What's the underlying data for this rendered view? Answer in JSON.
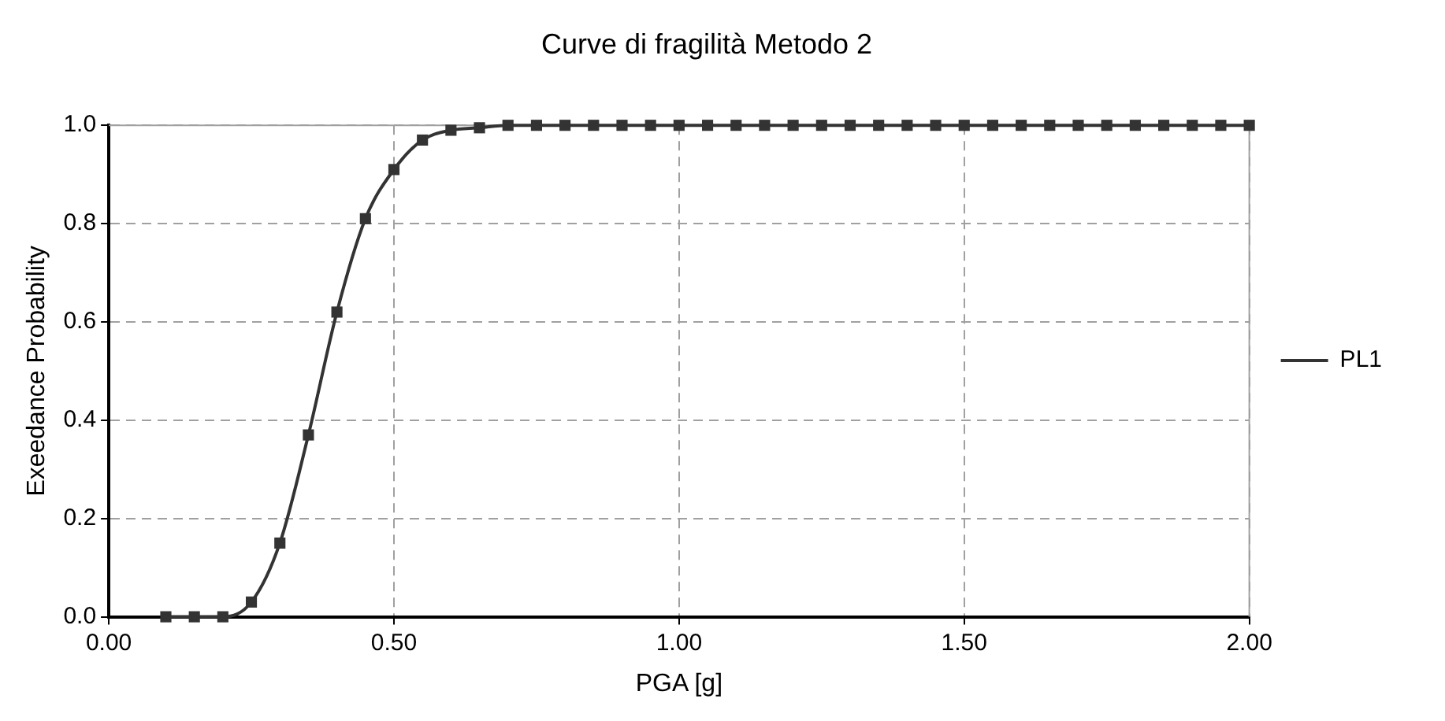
{
  "chart_data": {
    "type": "line",
    "title": "Curve di fragilità Metodo 2",
    "xlabel": "PGA [g]",
    "ylabel": "Exeedance Probability",
    "x": [
      0.1,
      0.15,
      0.2,
      0.25,
      0.3,
      0.35,
      0.4,
      0.45,
      0.5,
      0.55,
      0.6,
      0.65,
      0.7,
      0.75,
      0.8,
      0.85,
      0.9,
      0.95,
      1.0,
      1.05,
      1.1,
      1.15,
      1.2,
      1.25,
      1.3,
      1.35,
      1.4,
      1.45,
      1.5,
      1.55,
      1.6,
      1.65,
      1.7,
      1.75,
      1.8,
      1.85,
      1.9,
      1.95,
      2.0
    ],
    "series": [
      {
        "name": "PL1",
        "color": "#333333",
        "values": [
          0,
          0,
          0,
          0.03,
          0.15,
          0.37,
          0.62,
          0.81,
          0.91,
          0.97,
          0.99,
          0.995,
          1,
          1,
          1,
          1,
          1,
          1,
          1,
          1,
          1,
          1,
          1,
          1,
          1,
          1,
          1,
          1,
          1,
          1,
          1,
          1,
          1,
          1,
          1,
          1,
          1,
          1,
          1
        ]
      }
    ],
    "xlim": [
      0,
      2
    ],
    "xticks": [
      {
        "value": 0,
        "label": "0.00"
      },
      {
        "value": 0.5,
        "label": "0.50"
      },
      {
        "value": 1,
        "label": "1.00"
      },
      {
        "value": 1.5,
        "label": "1.50"
      },
      {
        "value": 2,
        "label": "2.00"
      }
    ],
    "ylim": [
      0,
      1
    ],
    "yticks": [
      {
        "value": 0,
        "label": "0.0"
      },
      {
        "value": 0.2,
        "label": "0.2"
      },
      {
        "value": 0.4,
        "label": "0.4"
      },
      {
        "value": 0.6,
        "label": "0.6"
      },
      {
        "value": 0.8,
        "label": "0.8"
      },
      {
        "value": 1,
        "label": "1.0"
      }
    ],
    "grid": true,
    "legend": "right",
    "marker": "square",
    "line_style": "solid"
  }
}
